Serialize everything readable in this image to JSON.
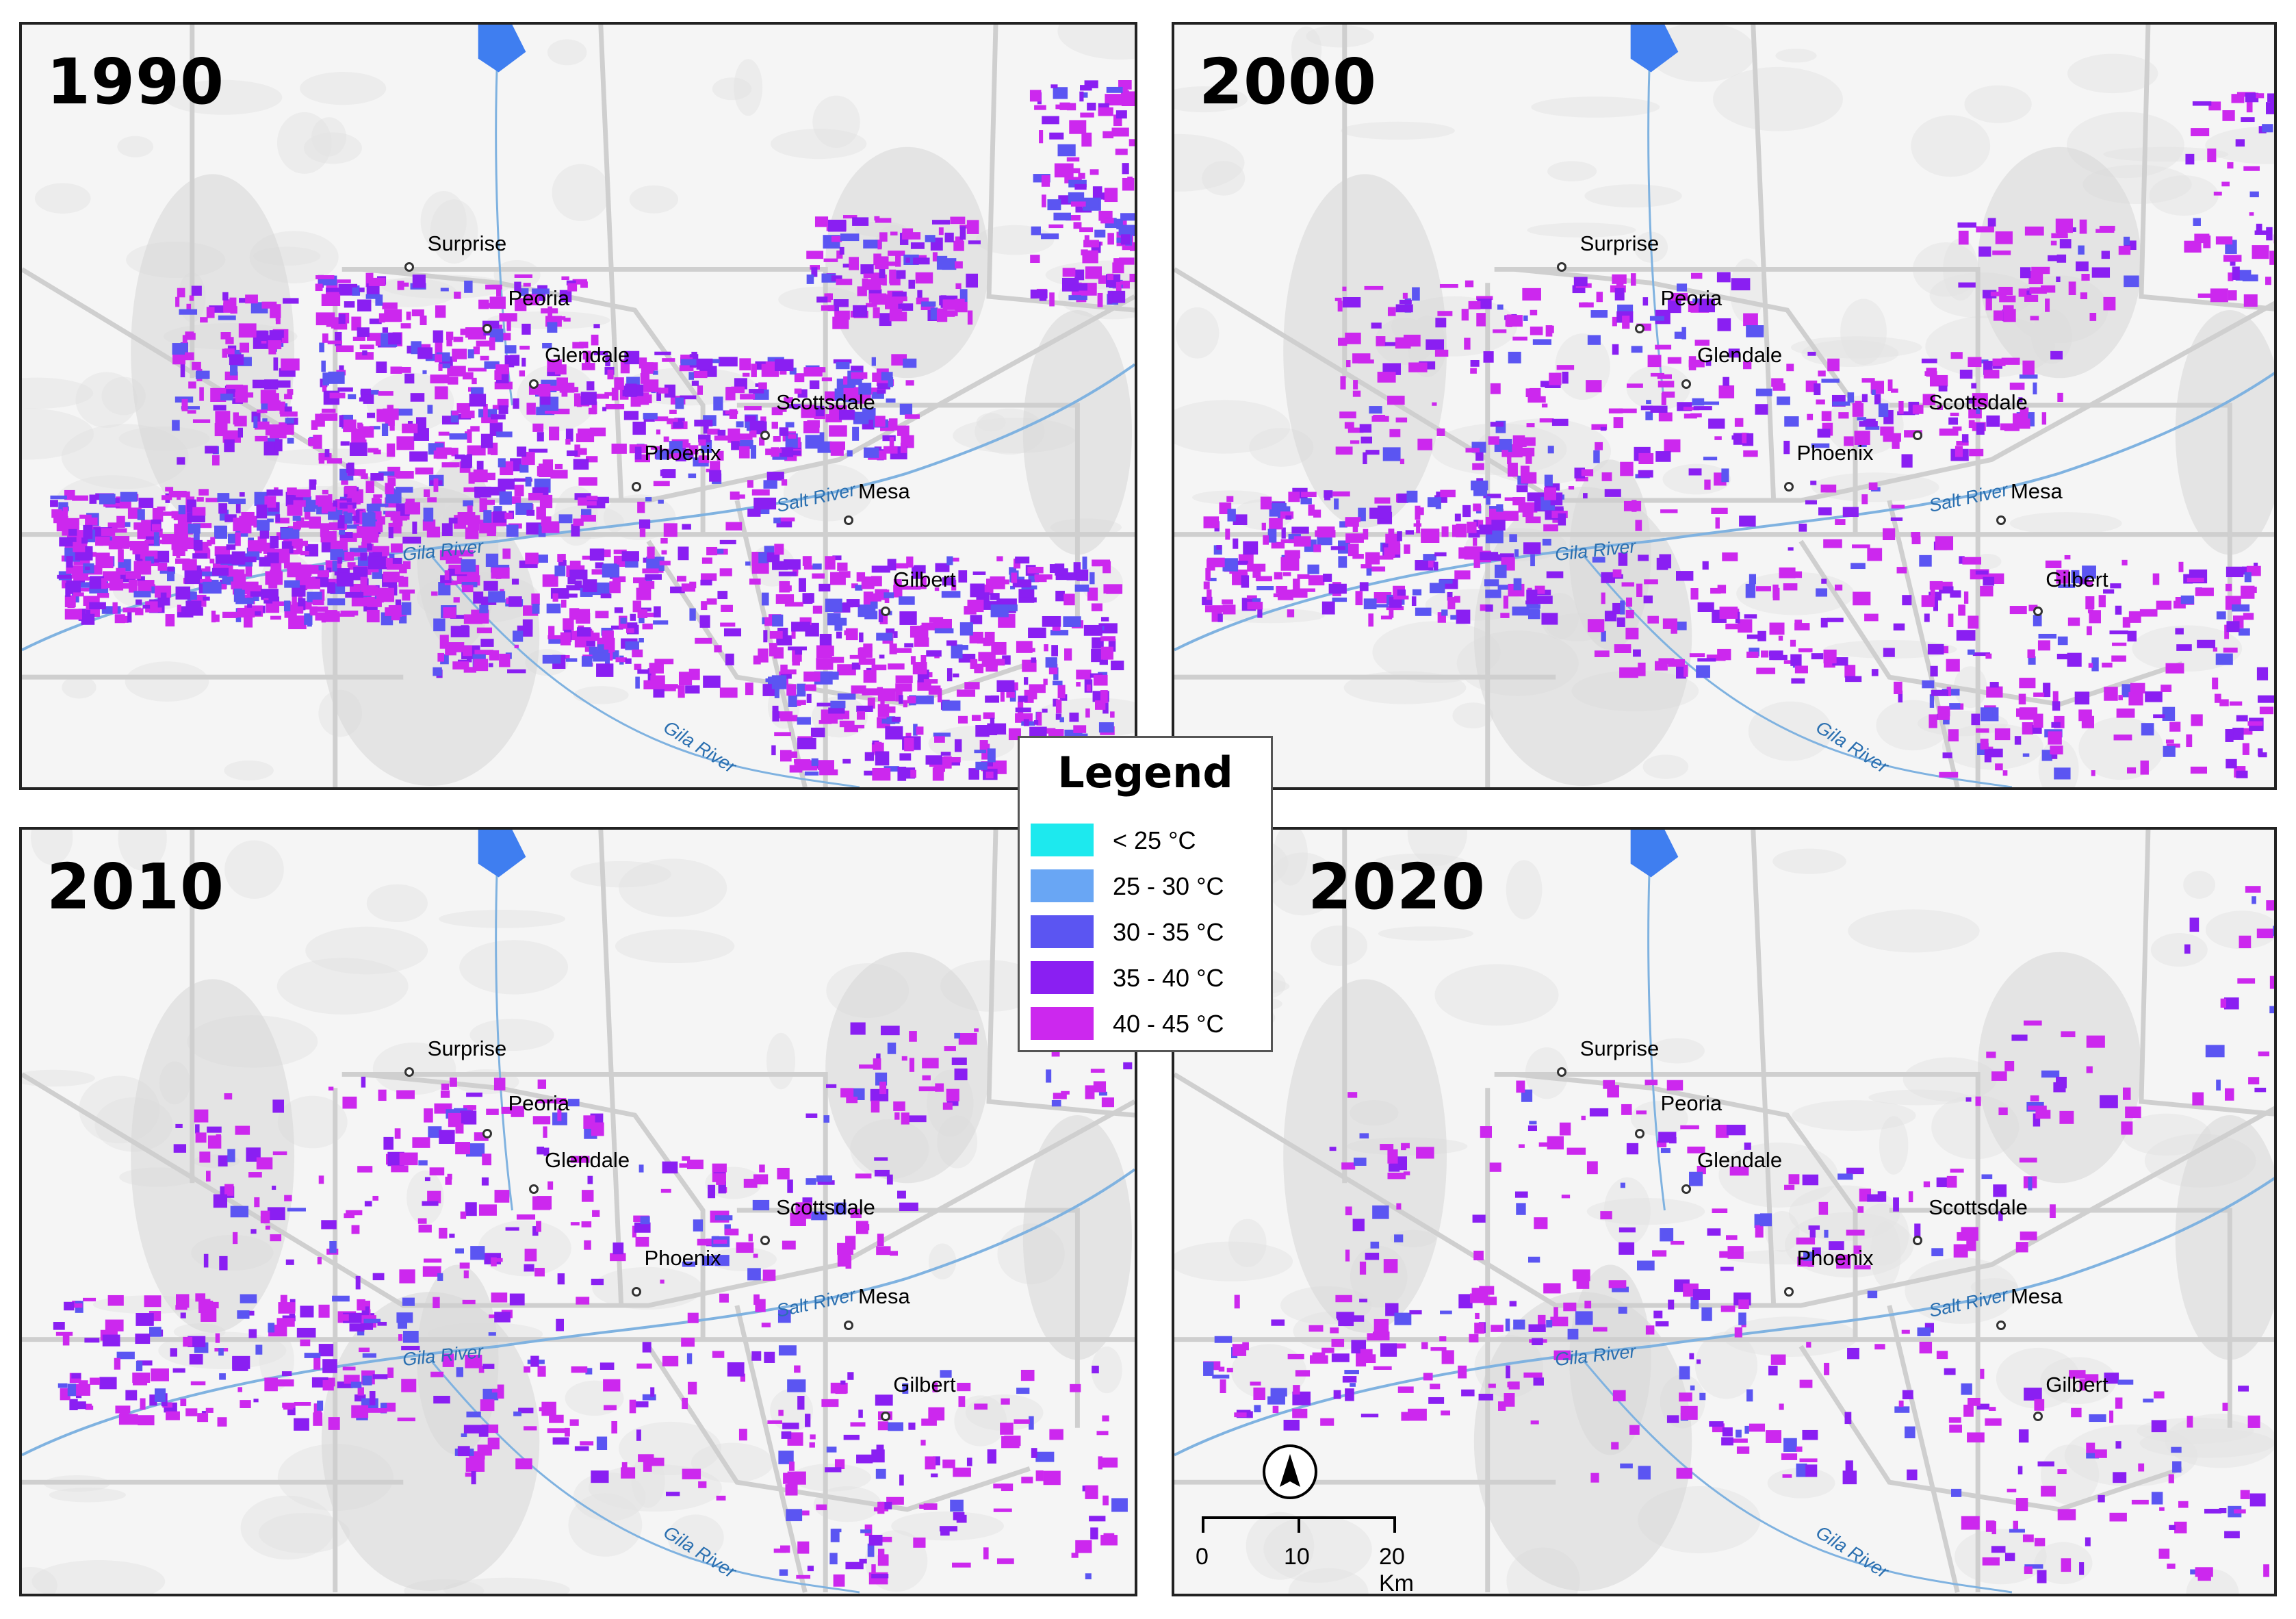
{
  "panels": [
    {
      "year": "1990"
    },
    {
      "year": "2000"
    },
    {
      "year": "2010"
    },
    {
      "year": "2020"
    }
  ],
  "cities": {
    "surprise": "Surprise",
    "peoria": "Peoria",
    "glendale": "Glendale",
    "scottsdale": "Scottsdale",
    "phoenix": "Phoenix",
    "mesa": "Mesa",
    "gilbert": "Gilbert"
  },
  "rivers": {
    "salt": "Salt River",
    "gila": "Gila River"
  },
  "legend": {
    "title": "Legend",
    "items": [
      {
        "label": "< 25 °C",
        "color": "#1de9ee"
      },
      {
        "label": "25 - 30 °C",
        "color": "#69a6f4"
      },
      {
        "label": "30 - 35 °C",
        "color": "#5b55f2"
      },
      {
        "label": "35 - 40 °C",
        "color": "#8a1ff2"
      },
      {
        "label": "40 - 45 °C",
        "color": "#cc28ee"
      }
    ]
  },
  "scale": {
    "t0": "0",
    "t1": "10",
    "t2": "20 Km"
  },
  "north_arrow": "north-arrow-icon"
}
